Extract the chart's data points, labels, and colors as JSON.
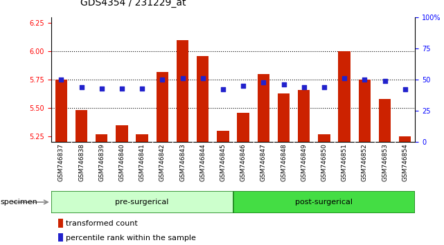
{
  "title": "GDS4354 / 231229_at",
  "samples": [
    "GSM746837",
    "GSM746838",
    "GSM746839",
    "GSM746840",
    "GSM746841",
    "GSM746842",
    "GSM746843",
    "GSM746844",
    "GSM746845",
    "GSM746846",
    "GSM746847",
    "GSM746848",
    "GSM746849",
    "GSM746850",
    "GSM746851",
    "GSM746852",
    "GSM746853",
    "GSM746854"
  ],
  "transformed_count": [
    5.75,
    5.48,
    5.27,
    5.35,
    5.27,
    5.82,
    6.1,
    5.96,
    5.3,
    5.46,
    5.8,
    5.63,
    5.66,
    5.27,
    6.0,
    5.75,
    5.58,
    5.25
  ],
  "percentile_rank": [
    50,
    44,
    43,
    43,
    43,
    50,
    51,
    51,
    42,
    45,
    48,
    46,
    44,
    44,
    51,
    50,
    49,
    42
  ],
  "pre_surgical_count": 9,
  "pre_surgical_label": "pre-surgerical",
  "post_surgical_label": "post-surgerical",
  "ylim_left": [
    5.2,
    6.3
  ],
  "ylim_right": [
    0,
    100
  ],
  "yticks_left": [
    5.25,
    5.5,
    5.75,
    6.0,
    6.25
  ],
  "yticks_right": [
    0,
    25,
    50,
    75,
    100
  ],
  "bar_color": "#cc2200",
  "dot_color": "#2222cc",
  "pre_surgical_color": "#ccffcc",
  "post_surgical_color": "#44dd44",
  "specimen_label": "specimen",
  "legend_bar_label": "transformed count",
  "legend_dot_label": "percentile rank within the sample",
  "title_fontsize": 10,
  "axis_label_fontsize": 8,
  "tick_fontsize": 7,
  "group_label_fontsize": 8
}
